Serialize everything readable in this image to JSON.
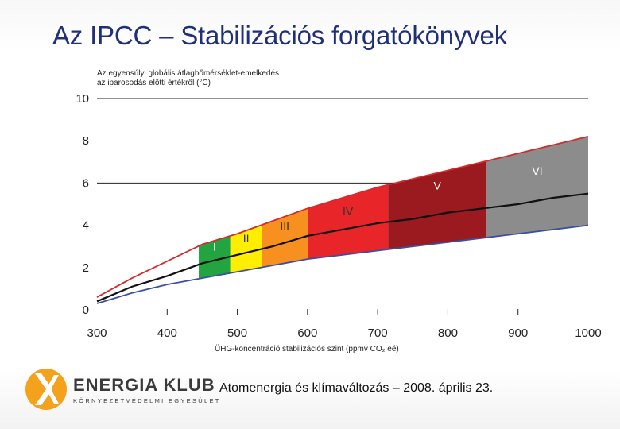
{
  "title": "Az IPCC – Stabilizációs forgatókönyvek",
  "footer": "Atomenergia és klímaváltozás – 2008. április 23.",
  "logo": {
    "name": "ENERGIA KLUB",
    "subtitle": "KÖRNYEZETVÉDELMI EGYESÜLET",
    "color": "#f4a21c"
  },
  "chart_data": {
    "type": "area",
    "ylabel_line1": "Az egyensúlyi globális átlaghőmérséklet-emelkedés",
    "ylabel_line2": "az iparosodás előtti értékről (°C)",
    "xlabel": "ÜHG-koncentráció stabilizációs szint (ppmv CO₂ eé)",
    "xlim": [
      300,
      1000
    ],
    "ylim": [
      0,
      10
    ],
    "x_ticks": [
      300,
      400,
      500,
      600,
      700,
      800,
      900,
      1000
    ],
    "y_ticks": [
      0,
      2,
      4,
      6,
      8,
      10
    ],
    "y_gridlines": [
      6,
      10
    ],
    "series": [
      {
        "name": "upper",
        "color": "#d42a2a",
        "x": [
          300,
          350,
          400,
          450,
          500,
          550,
          600,
          650,
          700,
          750,
          800,
          850,
          900,
          950,
          1000
        ],
        "values": [
          0.6,
          1.5,
          2.3,
          3.1,
          3.6,
          4.2,
          4.8,
          5.3,
          5.8,
          6.2,
          6.6,
          7.0,
          7.4,
          7.8,
          8.2
        ]
      },
      {
        "name": "best estimate",
        "color": "#111111",
        "x": [
          300,
          350,
          400,
          450,
          500,
          550,
          600,
          650,
          700,
          750,
          800,
          850,
          900,
          950,
          1000
        ],
        "values": [
          0.4,
          1.1,
          1.6,
          2.2,
          2.6,
          3.0,
          3.5,
          3.8,
          4.1,
          4.3,
          4.6,
          4.8,
          5.0,
          5.3,
          5.5
        ]
      },
      {
        "name": "lower",
        "color": "#3b4ea0",
        "x": [
          300,
          350,
          400,
          450,
          500,
          550,
          600,
          650,
          700,
          750,
          800,
          850,
          900,
          950,
          1000
        ],
        "values": [
          0.3,
          0.8,
          1.2,
          1.5,
          1.8,
          2.1,
          2.4,
          2.6,
          2.8,
          3.0,
          3.2,
          3.4,
          3.6,
          3.8,
          4.0
        ]
      }
    ],
    "bands": [
      {
        "label": "I",
        "x0": 445,
        "x1": 490,
        "color": "#22a540",
        "label_color": "#ffffff",
        "label_y": 2.8
      },
      {
        "label": "II",
        "x0": 490,
        "x1": 535,
        "color": "#ffee00",
        "label_color": "#333333",
        "label_y": 3.2
      },
      {
        "label": "III",
        "x0": 535,
        "x1": 600,
        "color": "#f7901e",
        "label_color": "#333333",
        "label_y": 3.8
      },
      {
        "label": "IV",
        "x0": 600,
        "x1": 715,
        "color": "#e8262a",
        "label_color": "#333333",
        "label_y": 4.5
      },
      {
        "label": "V",
        "x0": 715,
        "x1": 855,
        "color": "#9a1a20",
        "label_color": "#ffffff",
        "label_y": 5.7
      },
      {
        "label": "VI",
        "x0": 855,
        "x1": 1000,
        "color": "#8c8c8c",
        "label_color": "#ffffff",
        "label_y": 6.4
      }
    ]
  }
}
